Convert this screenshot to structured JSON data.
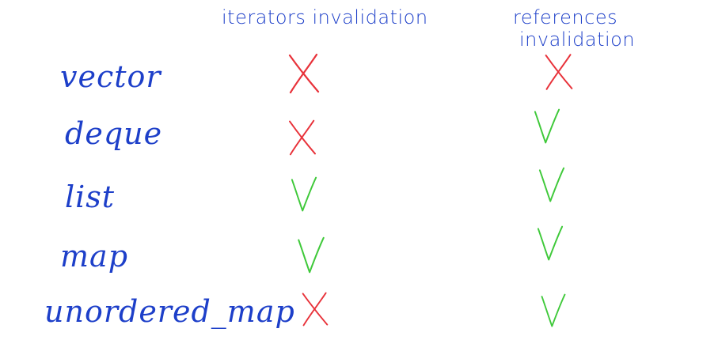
{
  "colors": {
    "ink": "#1d3fc9",
    "invalidated": "#e8323a",
    "valid": "#3fc93a"
  },
  "header": {
    "iterators_line": "iterators invalidation",
    "references_line1": "references",
    "references_line2": "invalidation"
  },
  "rows": [
    {
      "label": "vector",
      "iterators": "x",
      "references": "x"
    },
    {
      "label": "deque",
      "iterators": "x",
      "references": "check"
    },
    {
      "label": "list",
      "iterators": "check",
      "references": "check"
    },
    {
      "label": "map",
      "iterators": "check",
      "references": "check"
    },
    {
      "label": "unordered_map",
      "iterators": "x",
      "references": "check"
    }
  ]
}
